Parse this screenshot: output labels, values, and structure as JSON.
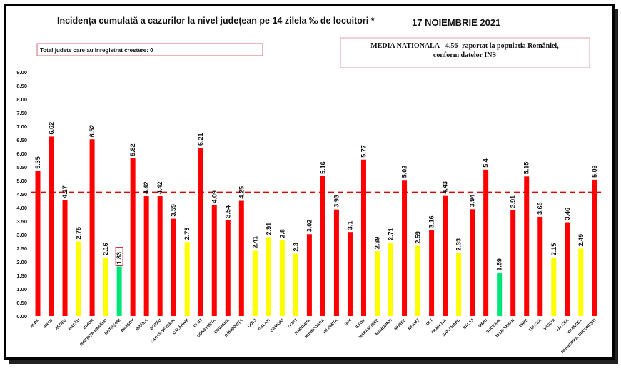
{
  "chart_data": {
    "type": "bar",
    "title": "Incidența cumulată a cazurilor la nivel județean pe 14 zilela ‰ de locuitori *",
    "date": "17 NOIEMBRIE 2021",
    "note_left": "Total judete care au inregistrat crestere: 0",
    "note_right_line1": "MEDIA NATIONALA - 4.56-  raportat la populatia României,",
    "note_right_line2": "conform datelor INS",
    "reference_line": {
      "value": 4.56,
      "style": "dashed",
      "color": "#e00000"
    },
    "ylim": [
      0,
      9
    ],
    "yticks": [
      "0.00",
      "0.50",
      "1.00",
      "1.50",
      "2.00",
      "2.50",
      "3.00",
      "3.50",
      "4.00",
      "4.50",
      "5.00",
      "5.50",
      "6.00",
      "6.50",
      "7.00",
      "7.50",
      "8.00",
      "8.50",
      "9.00"
    ],
    "grid": false,
    "colors": {
      "high": "#ff0000",
      "medium": "#ffff00",
      "low": "#00e676"
    },
    "categories": [
      "ALBA",
      "ARAD",
      "ARGEȘ",
      "BACĂU",
      "BIHOR",
      "BISTRIȚA-NĂSĂUD",
      "BOTOȘANI",
      "BRAȘOV",
      "BRĂILA",
      "BUZĂU",
      "CARAȘ-SEVERIN",
      "CĂLĂRAȘI",
      "CLUJ",
      "CONSTANȚA",
      "COVASNA",
      "DÂMBOVIȚA",
      "DOLJ",
      "GALAȚI",
      "GIURGIU",
      "GORJ",
      "HARGHITA",
      "HUNEDOARA",
      "IALOMIȚA",
      "IAȘI",
      "ILFOV",
      "MARAMUREȘ",
      "MEHEDINȚI",
      "MUREȘ",
      "NEAMȚ",
      "OLT",
      "PRAHOVA",
      "SATU MARE",
      "SĂLAJ",
      "SIBIU",
      "SUCEAVA",
      "TELEORMAN",
      "TIMIȘ",
      "TULCEA",
      "VASLUI",
      "VÂLCEA",
      "VRANCEA",
      "MUNICIPIUL BUCUREȘTI"
    ],
    "values": [
      5.35,
      6.62,
      4.27,
      2.75,
      6.52,
      2.16,
      1.83,
      5.82,
      4.42,
      4.42,
      3.59,
      2.73,
      6.21,
      4.09,
      3.54,
      4.25,
      2.41,
      2.91,
      2.8,
      2.3,
      3.02,
      5.16,
      3.93,
      3.1,
      5.77,
      2.39,
      2.71,
      5.02,
      2.59,
      3.16,
      4.43,
      2.33,
      3.94,
      5.4,
      1.59,
      3.91,
      5.15,
      3.66,
      2.15,
      3.46,
      2.49,
      5.03
    ],
    "value_labels": [
      "5.35",
      "6.62",
      "4.27",
      "2.75",
      "6.52",
      "2.16",
      "1.83",
      "5.82",
      "4.42",
      "4.42",
      "3.59",
      "2.73",
      "6.21",
      "4.09",
      "3.54",
      "4.25",
      "2.41",
      "2.91",
      "2.8",
      "2.3",
      "3.02",
      "5.16",
      "3.93",
      "3.1",
      "5.77",
      "2.39",
      "2.71",
      "5.02",
      "2.59",
      "3.16",
      "4.43",
      "2.33",
      "3.94",
      "5.4",
      "1.59",
      "3.91",
      "5.15",
      "3.66",
      "2.15",
      "3.46",
      "2.49",
      "5.03"
    ],
    "bar_colors": [
      "high",
      "high",
      "high",
      "medium",
      "high",
      "medium",
      "low",
      "high",
      "high",
      "high",
      "high",
      "medium",
      "high",
      "high",
      "high",
      "high",
      "medium",
      "medium",
      "medium",
      "medium",
      "high",
      "high",
      "high",
      "high",
      "high",
      "medium",
      "medium",
      "high",
      "medium",
      "high",
      "high",
      "medium",
      "high",
      "high",
      "low",
      "high",
      "high",
      "high",
      "medium",
      "high",
      "medium",
      "high"
    ]
  }
}
